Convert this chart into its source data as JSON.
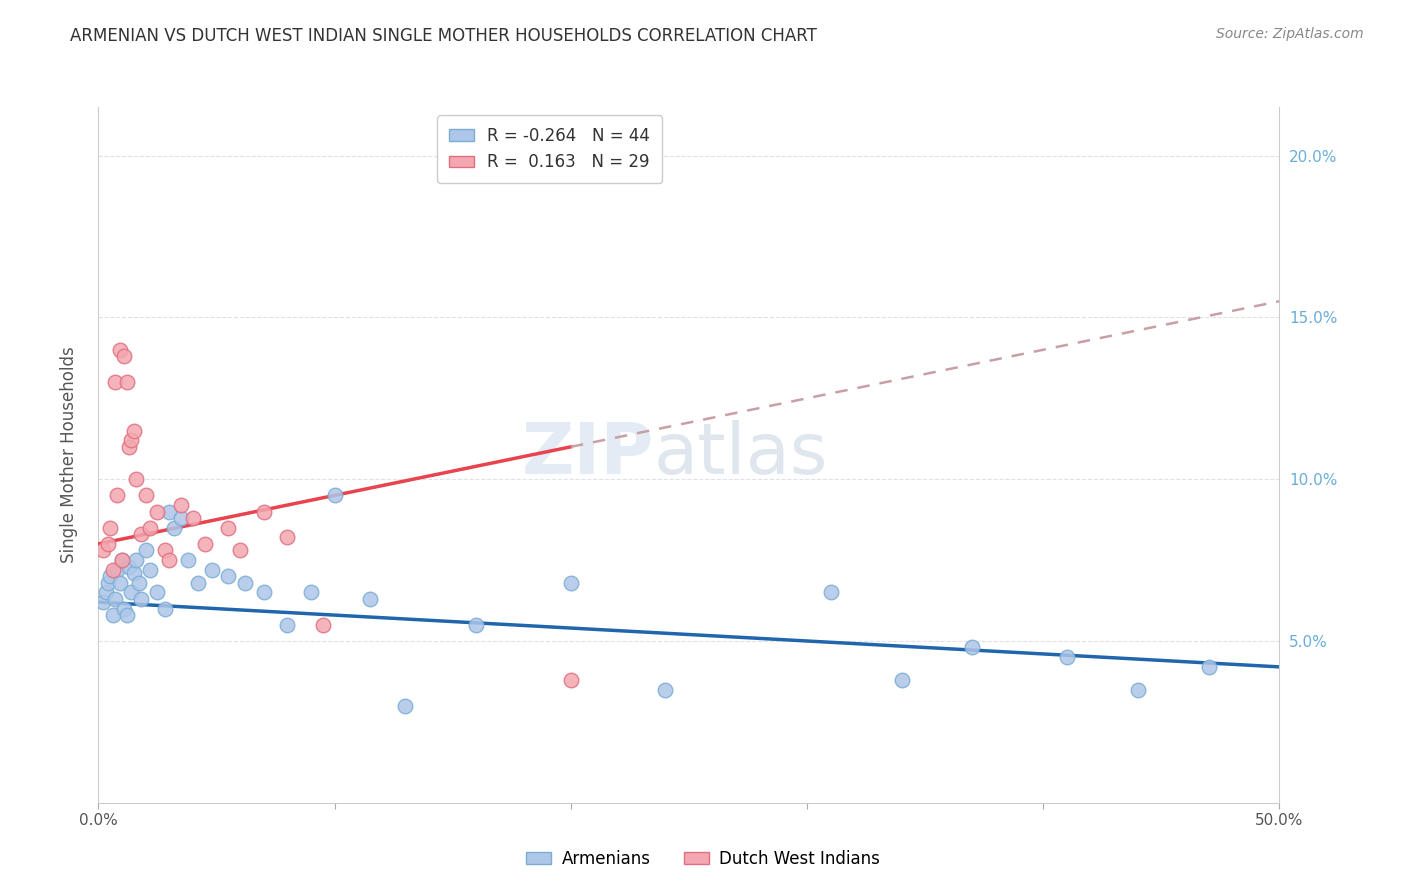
{
  "title": "ARMENIAN VS DUTCH WEST INDIAN SINGLE MOTHER HOUSEHOLDS CORRELATION CHART",
  "source": "Source: ZipAtlas.com",
  "ylabel": "Single Mother Households",
  "xlim": [
    0.0,
    0.5
  ],
  "ylim": [
    0.0,
    0.215
  ],
  "yticks": [
    0.05,
    0.1,
    0.15,
    0.2
  ],
  "ytick_labels": [
    "5.0%",
    "10.0%",
    "15.0%",
    "20.0%"
  ],
  "xticks": [
    0.0,
    0.1,
    0.2,
    0.3,
    0.4,
    0.5
  ],
  "xtick_labels": [
    "0.0%",
    "",
    "",
    "",
    "",
    "50.0%"
  ],
  "armenian_color": "#aec6e8",
  "dutch_color": "#f4a7b0",
  "armenian_line_color": "#2166ac",
  "dutch_line_color": "#e8434e",
  "dutch_line_dashed_color": "#c8a0a4",
  "watermark": "ZIPatlas",
  "background_color": "#ffffff",
  "grid_color": "#e0e0e8",
  "right_axis_color": "#6baed6",
  "armenians_x": [
    0.002,
    0.003,
    0.004,
    0.005,
    0.006,
    0.007,
    0.008,
    0.009,
    0.01,
    0.011,
    0.012,
    0.013,
    0.014,
    0.015,
    0.016,
    0.017,
    0.018,
    0.02,
    0.022,
    0.025,
    0.028,
    0.03,
    0.032,
    0.035,
    0.038,
    0.042,
    0.048,
    0.055,
    0.062,
    0.07,
    0.08,
    0.09,
    0.1,
    0.115,
    0.13,
    0.16,
    0.2,
    0.24,
    0.31,
    0.34,
    0.37,
    0.41,
    0.44,
    0.47
  ],
  "armenians_y": [
    0.062,
    0.065,
    0.068,
    0.07,
    0.058,
    0.063,
    0.072,
    0.068,
    0.075,
    0.06,
    0.058,
    0.073,
    0.065,
    0.071,
    0.075,
    0.068,
    0.063,
    0.078,
    0.072,
    0.065,
    0.06,
    0.09,
    0.085,
    0.088,
    0.075,
    0.068,
    0.072,
    0.07,
    0.068,
    0.065,
    0.055,
    0.065,
    0.095,
    0.063,
    0.03,
    0.055,
    0.068,
    0.035,
    0.065,
    0.038,
    0.048,
    0.045,
    0.035,
    0.042
  ],
  "dutch_x": [
    0.002,
    0.004,
    0.005,
    0.006,
    0.007,
    0.008,
    0.009,
    0.01,
    0.011,
    0.012,
    0.013,
    0.014,
    0.015,
    0.016,
    0.018,
    0.02,
    0.022,
    0.025,
    0.028,
    0.03,
    0.035,
    0.04,
    0.045,
    0.055,
    0.06,
    0.07,
    0.08,
    0.095,
    0.2
  ],
  "dutch_y": [
    0.078,
    0.08,
    0.085,
    0.072,
    0.13,
    0.095,
    0.14,
    0.075,
    0.138,
    0.13,
    0.11,
    0.112,
    0.115,
    0.1,
    0.083,
    0.095,
    0.085,
    0.09,
    0.078,
    0.075,
    0.092,
    0.088,
    0.08,
    0.085,
    0.078,
    0.09,
    0.082,
    0.055,
    0.038
  ]
}
